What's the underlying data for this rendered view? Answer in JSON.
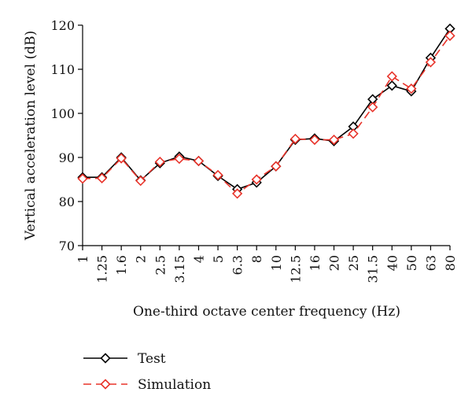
{
  "chart_data": {
    "type": "line",
    "xlabel": "One-third octave center frequency (Hz)",
    "ylabel": "Vertical acceleration level (dB)",
    "ylim": [
      70,
      120
    ],
    "yticks": [
      70,
      80,
      90,
      100,
      110,
      120
    ],
    "categories": [
      "1",
      "1.25",
      "1.6",
      "2",
      "2.5",
      "3.15",
      "4",
      "5",
      "6.3",
      "8",
      "10",
      "12.5",
      "16",
      "20",
      "25",
      "31.5",
      "40",
      "50",
      "63",
      "80"
    ],
    "grid": false,
    "legend_position": "bottom-left",
    "series": [
      {
        "name": "Test",
        "color": "#000000",
        "dash": "solid",
        "marker": "diamond",
        "values": [
          85.5,
          85.5,
          90.0,
          84.8,
          88.7,
          90.2,
          89.2,
          85.8,
          82.8,
          84.3,
          88.0,
          94.0,
          94.3,
          93.7,
          97.0,
          103.2,
          106.3,
          105.0,
          112.6,
          119.2
        ]
      },
      {
        "name": "Simulation",
        "color": "#e8332a",
        "dash": "dashed",
        "marker": "diamond",
        "values": [
          85.2,
          85.3,
          89.8,
          84.7,
          89.0,
          89.7,
          89.2,
          86.0,
          81.8,
          85.0,
          88.0,
          94.2,
          94.0,
          94.0,
          95.4,
          101.4,
          108.4,
          105.6,
          111.6,
          117.6
        ]
      }
    ]
  }
}
